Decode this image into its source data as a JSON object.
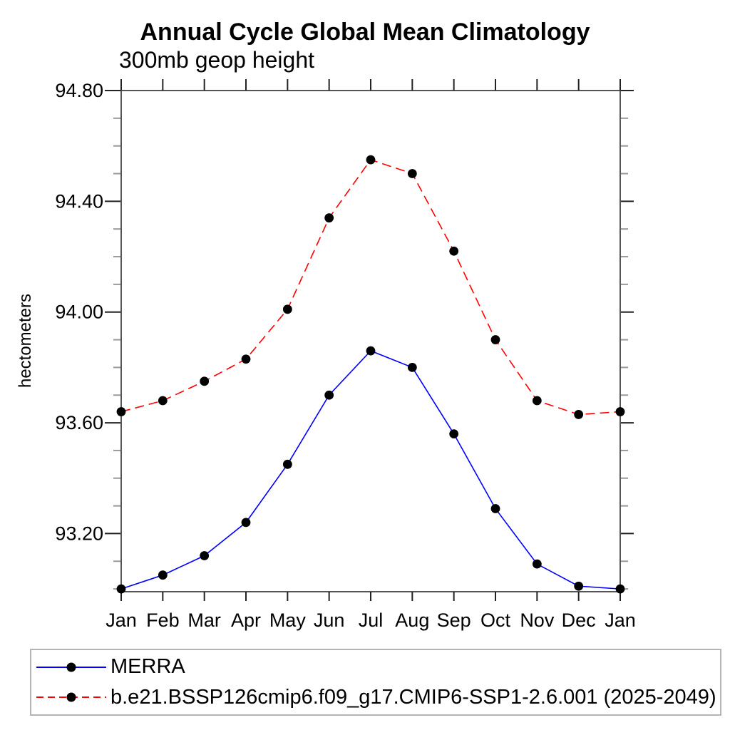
{
  "title": "Annual Cycle Global Mean Climatology",
  "subtitle": "300mb geop height",
  "colors": {
    "merra_line": "#0000ff",
    "model_line": "#ff0000",
    "marker": "#000000",
    "axis": "#555555",
    "major_tick": "#222222",
    "minor_tick": "#999999",
    "legend_border": "#b4b4b4"
  },
  "chart_data": {
    "type": "line",
    "title": "Annual Cycle Global Mean Climatology",
    "subtitle": "300mb geop height",
    "xlabel": "",
    "ylabel": "hectometers",
    "categories": [
      "Jan",
      "Feb",
      "Mar",
      "Apr",
      "May",
      "Jun",
      "Jul",
      "Aug",
      "Sep",
      "Oct",
      "Nov",
      "Dec",
      "Jan"
    ],
    "series": [
      {
        "name": "MERRA",
        "color": "#0000ff",
        "line_style": "solid",
        "marker": "filled-circle",
        "marker_color": "#000000",
        "values": [
          93.0,
          93.05,
          93.12,
          93.24,
          93.45,
          93.7,
          93.86,
          93.8,
          93.56,
          93.29,
          93.09,
          93.01,
          93.0
        ]
      },
      {
        "name": "b.e21.BSSP126cmip6.f09_g17.CMIP6-SSP1-2.6.001 (2025-2049)",
        "color": "#ff0000",
        "line_style": "dashed",
        "marker": "filled-circle",
        "marker_color": "#000000",
        "values": [
          93.64,
          93.68,
          93.75,
          93.83,
          94.01,
          94.34,
          94.55,
          94.5,
          94.22,
          93.9,
          93.68,
          93.63,
          93.64
        ]
      }
    ],
    "ylim": [
      92.99,
      94.8
    ],
    "yticks_major": [
      93.2,
      93.6,
      94.0,
      94.4,
      94.8
    ],
    "ytick_labels": [
      "93.20",
      "93.60",
      "94.00",
      "94.40",
      "94.80"
    ],
    "yticks_minor": [
      93.0,
      93.1,
      93.3,
      93.4,
      93.5,
      93.7,
      93.8,
      93.9,
      94.1,
      94.2,
      94.3,
      94.5,
      94.6,
      94.7
    ],
    "grid": false,
    "legend_position": "bottom-left-box"
  }
}
